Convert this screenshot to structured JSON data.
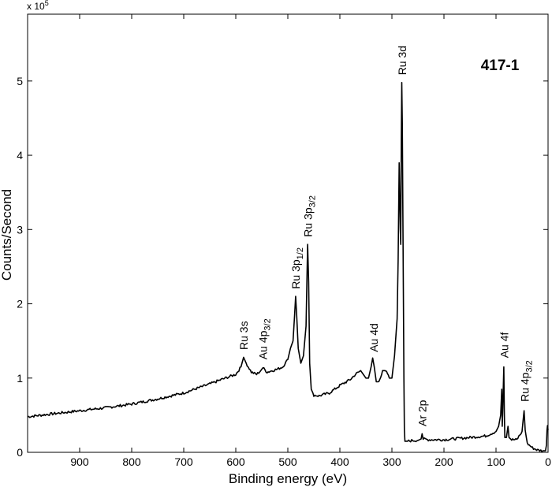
{
  "chart_data": {
    "type": "line",
    "title": "417-1",
    "xlabel": "Binding energy (eV)",
    "ylabel": "Counts/Second",
    "y_multiplier": {
      "base": "x 10",
      "exp": "5"
    },
    "x_reversed": true,
    "xlim": [
      1000,
      0
    ],
    "ylim": [
      0,
      5.9
    ],
    "x_ticks": [
      900,
      800,
      700,
      600,
      500,
      400,
      300,
      200,
      100,
      0
    ],
    "x_tick_labels": [
      "900",
      "800",
      "700",
      "600",
      "500",
      "400",
      "300",
      "200",
      "100",
      "0"
    ],
    "y_ticks": [
      0,
      1,
      2,
      3,
      4,
      5
    ],
    "y_tick_labels": [
      "0",
      "1",
      "2",
      "3",
      "4",
      "5"
    ],
    "grid": false,
    "series": [
      {
        "x": [
          1000,
          950,
          900,
          850,
          800,
          750,
          700,
          650,
          620,
          600,
          590,
          585,
          580,
          570,
          560,
          552,
          548,
          540,
          530,
          520,
          510,
          500,
          495,
          490,
          487,
          485,
          483,
          480,
          475,
          470,
          465,
          462,
          460,
          458,
          455,
          450,
          440,
          420,
          400,
          380,
          370,
          360,
          355,
          350,
          345,
          340,
          337,
          334,
          330,
          325,
          318,
          312,
          305,
          300,
          295,
          290,
          288,
          286,
          284,
          283,
          282,
          281,
          280,
          279,
          278,
          277,
          276,
          275,
          270,
          260,
          250,
          244,
          242,
          240,
          230,
          200,
          150,
          120,
          100,
          95,
          91,
          89,
          88,
          87,
          85,
          84,
          83,
          80,
          77,
          75,
          72,
          70,
          60,
          50,
          47,
          46,
          44,
          40,
          30,
          20,
          10,
          5,
          3,
          2,
          1,
          0
        ],
        "y": [
          0.48,
          0.52,
          0.56,
          0.6,
          0.65,
          0.72,
          0.8,
          0.92,
          1.0,
          1.05,
          1.15,
          1.28,
          1.2,
          1.08,
          1.05,
          1.1,
          1.14,
          1.08,
          1.1,
          1.12,
          1.15,
          1.25,
          1.4,
          1.5,
          1.85,
          2.1,
          1.85,
          1.4,
          1.2,
          1.3,
          1.7,
          2.8,
          2.3,
          1.2,
          0.85,
          0.77,
          0.76,
          0.8,
          0.9,
          0.98,
          1.05,
          1.1,
          1.05,
          1.0,
          1.0,
          1.15,
          1.27,
          1.15,
          0.95,
          0.95,
          1.1,
          1.1,
          1.0,
          1.0,
          1.3,
          1.8,
          2.6,
          3.9,
          3.0,
          2.8,
          4.2,
          4.98,
          4.4,
          3.2,
          2.2,
          1.0,
          0.3,
          0.15,
          0.15,
          0.16,
          0.16,
          0.18,
          0.25,
          0.18,
          0.17,
          0.17,
          0.2,
          0.22,
          0.28,
          0.35,
          0.5,
          0.85,
          0.35,
          0.6,
          1.15,
          0.5,
          0.2,
          0.2,
          0.35,
          0.2,
          0.18,
          0.17,
          0.17,
          0.28,
          0.5,
          0.56,
          0.3,
          0.12,
          0.06,
          0.03,
          0.02,
          0.02,
          0.1,
          0.3,
          0.36,
          0.3
        ]
      }
    ],
    "annotations": [
      {
        "main": "Ru 3s",
        "sub": "",
        "x": 585,
        "y": 1.38
      },
      {
        "main": "Au 4p",
        "sub": "3/2",
        "x": 548,
        "y": 1.25
      },
      {
        "main": "Ru 3p",
        "sub": "1/2",
        "x": 485,
        "y": 2.2
      },
      {
        "main": "Ru 3p",
        "sub": "3/2",
        "x": 461,
        "y": 2.9
      },
      {
        "main": "Au 4d",
        "sub": "",
        "x": 335,
        "y": 1.35
      },
      {
        "main": "Ru 3d",
        "sub": "",
        "x": 280,
        "y": 5.08
      },
      {
        "main": "Ar 2p",
        "sub": "",
        "x": 242,
        "y": 0.35
      },
      {
        "main": "Au 4f",
        "sub": "",
        "x": 84,
        "y": 1.27
      },
      {
        "main": "Ru 4p",
        "sub": "3/2",
        "x": 45,
        "y": 0.68
      }
    ]
  }
}
